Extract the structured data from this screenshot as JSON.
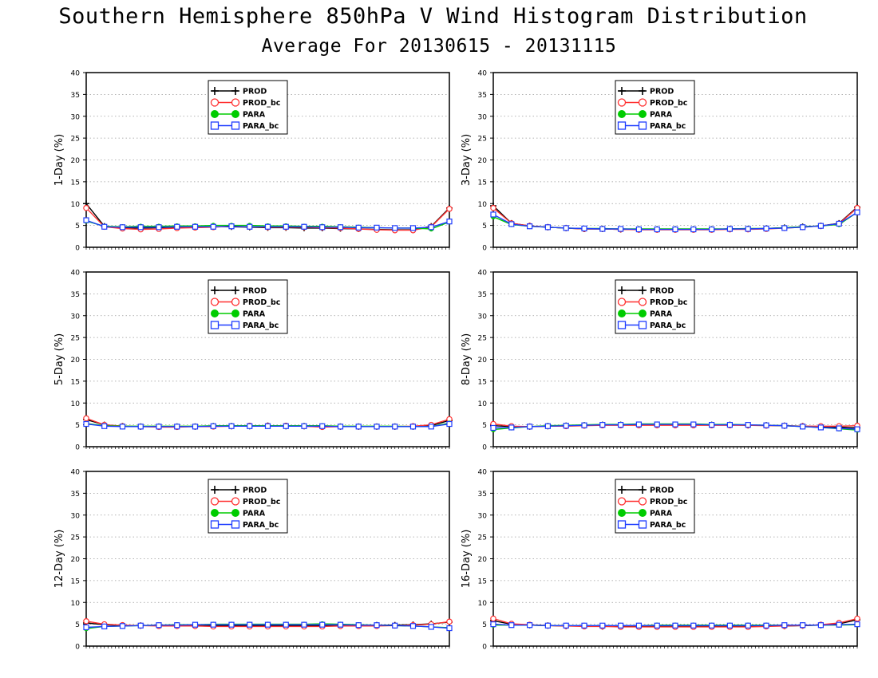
{
  "page": {
    "title": "Southern Hemisphere 850hPa V Wind Histogram Distribution",
    "subtitle": "Average For 20130615 - 20131115"
  },
  "series_styles": [
    {
      "name": "PROD",
      "color": "#000000",
      "marker": "plus"
    },
    {
      "name": "PROD_bc",
      "color": "#ff3030",
      "marker": "open-circle"
    },
    {
      "name": "PARA",
      "color": "#00cc00",
      "marker": "filled-circle"
    },
    {
      "name": "PARA_bc",
      "color": "#1e3cff",
      "marker": "open-square"
    }
  ],
  "chart_data": [
    {
      "type": "line",
      "ylabel": "1-Day (%)",
      "ylim": [
        0,
        40
      ],
      "yticks": [
        0,
        5,
        10,
        15,
        20,
        25,
        30,
        35,
        40
      ],
      "grid": true,
      "legend": "top-left",
      "x": [
        1,
        2,
        3,
        4,
        5,
        6,
        7,
        8,
        9,
        10,
        11,
        12,
        13,
        14,
        15,
        16,
        17,
        18,
        19,
        20,
        21
      ],
      "series": [
        {
          "name": "PROD",
          "values": [
            10,
            4.8,
            4.5,
            4.4,
            4.5,
            4.6,
            4.6,
            4.7,
            4.7,
            4.6,
            4.5,
            4.5,
            4.4,
            4.4,
            4.3,
            4.2,
            4.1,
            4.0,
            4.0,
            4.8,
            9.0
          ]
        },
        {
          "name": "PROD_bc",
          "values": [
            9.0,
            4.7,
            4.3,
            4.1,
            4.2,
            4.4,
            4.5,
            4.6,
            4.8,
            4.7,
            4.6,
            4.6,
            4.6,
            4.5,
            4.4,
            4.2,
            4.0,
            3.9,
            3.9,
            4.7,
            8.8
          ]
        },
        {
          "name": "PARA",
          "values": [
            6.0,
            4.8,
            4.7,
            4.8,
            4.8,
            4.9,
            4.9,
            5.0,
            5.0,
            5.0,
            4.9,
            4.9,
            4.8,
            4.8,
            4.7,
            4.6,
            4.5,
            4.4,
            4.4,
            4.2,
            5.8
          ]
        },
        {
          "name": "PARA_bc",
          "values": [
            6.2,
            4.7,
            4.6,
            4.6,
            4.6,
            4.7,
            4.7,
            4.7,
            4.8,
            4.7,
            4.7,
            4.7,
            4.7,
            4.6,
            4.6,
            4.5,
            4.5,
            4.4,
            4.4,
            4.6,
            5.9
          ]
        }
      ]
    },
    {
      "type": "line",
      "ylabel": "3-Day (%)",
      "ylim": [
        0,
        40
      ],
      "yticks": [
        0,
        5,
        10,
        15,
        20,
        25,
        30,
        35,
        40
      ],
      "grid": true,
      "legend": "top-left",
      "x": [
        1,
        2,
        3,
        4,
        5,
        6,
        7,
        8,
        9,
        10,
        11,
        12,
        13,
        14,
        15,
        16,
        17,
        18,
        19,
        20,
        21
      ],
      "series": [
        {
          "name": "PROD",
          "values": [
            9.5,
            5.5,
            4.9,
            4.6,
            4.4,
            4.2,
            4.2,
            4.1,
            4.1,
            4.1,
            4.1,
            4.1,
            4.1,
            4.2,
            4.2,
            4.3,
            4.5,
            4.7,
            4.9,
            5.5,
            9.2
          ]
        },
        {
          "name": "PROD_bc",
          "values": [
            9.0,
            5.5,
            4.9,
            4.6,
            4.4,
            4.2,
            4.2,
            4.1,
            4.0,
            4.0,
            4.0,
            4.0,
            4.0,
            4.1,
            4.1,
            4.2,
            4.4,
            4.6,
            4.9,
            5.4,
            9.0
          ]
        },
        {
          "name": "PARA",
          "values": [
            7.0,
            5.2,
            4.8,
            4.6,
            4.4,
            4.3,
            4.3,
            4.2,
            4.2,
            4.2,
            4.2,
            4.2,
            4.2,
            4.2,
            4.3,
            4.3,
            4.5,
            4.7,
            4.9,
            5.2,
            8.0
          ]
        },
        {
          "name": "PARA_bc",
          "values": [
            7.5,
            5.3,
            4.8,
            4.6,
            4.4,
            4.3,
            4.2,
            4.2,
            4.1,
            4.1,
            4.1,
            4.1,
            4.1,
            4.2,
            4.2,
            4.3,
            4.4,
            4.6,
            4.9,
            5.4,
            8.0
          ]
        }
      ]
    },
    {
      "type": "line",
      "ylabel": "5-Day (%)",
      "ylim": [
        0,
        40
      ],
      "yticks": [
        0,
        5,
        10,
        15,
        20,
        25,
        30,
        35,
        40
      ],
      "grid": true,
      "legend": "top-left",
      "x": [
        1,
        2,
        3,
        4,
        5,
        6,
        7,
        8,
        9,
        10,
        11,
        12,
        13,
        14,
        15,
        16,
        17,
        18,
        19,
        20,
        21
      ],
      "series": [
        {
          "name": "PROD",
          "values": [
            6.2,
            5.0,
            4.7,
            4.6,
            4.6,
            4.6,
            4.6,
            4.7,
            4.7,
            4.7,
            4.8,
            4.7,
            4.7,
            4.6,
            4.6,
            4.6,
            4.6,
            4.6,
            4.6,
            4.8,
            6.0
          ]
        },
        {
          "name": "PROD_bc",
          "values": [
            6.5,
            5.0,
            4.7,
            4.6,
            4.5,
            4.5,
            4.6,
            4.6,
            4.7,
            4.8,
            4.8,
            4.8,
            4.7,
            4.5,
            4.6,
            4.6,
            4.6,
            4.6,
            4.7,
            5.0,
            6.3
          ]
        },
        {
          "name": "PARA",
          "values": [
            5.3,
            4.8,
            4.7,
            4.7,
            4.7,
            4.7,
            4.7,
            4.8,
            4.8,
            4.8,
            4.8,
            4.8,
            4.8,
            4.8,
            4.7,
            4.7,
            4.7,
            4.7,
            4.6,
            4.6,
            5.4
          ]
        },
        {
          "name": "PARA_bc",
          "values": [
            5.2,
            4.7,
            4.6,
            4.6,
            4.6,
            4.6,
            4.6,
            4.7,
            4.7,
            4.7,
            4.7,
            4.7,
            4.7,
            4.7,
            4.6,
            4.6,
            4.6,
            4.6,
            4.6,
            4.6,
            5.2
          ]
        }
      ]
    },
    {
      "type": "line",
      "ylabel": "8-Day (%)",
      "ylim": [
        0,
        40
      ],
      "yticks": [
        0,
        5,
        10,
        15,
        20,
        25,
        30,
        35,
        40
      ],
      "grid": true,
      "legend": "top-left",
      "x": [
        1,
        2,
        3,
        4,
        5,
        6,
        7,
        8,
        9,
        10,
        11,
        12,
        13,
        14,
        15,
        16,
        17,
        18,
        19,
        20,
        21
      ],
      "series": [
        {
          "name": "PROD",
          "values": [
            4.8,
            4.6,
            4.6,
            4.7,
            4.8,
            4.9,
            5.0,
            5.0,
            5.0,
            5.0,
            5.0,
            5.0,
            5.0,
            5.0,
            4.9,
            4.9,
            4.8,
            4.7,
            4.6,
            4.5,
            4.3
          ]
        },
        {
          "name": "PROD_bc",
          "values": [
            5.2,
            4.7,
            4.6,
            4.7,
            4.7,
            4.8,
            4.9,
            4.9,
            4.9,
            4.9,
            4.9,
            4.9,
            4.9,
            4.9,
            4.9,
            4.8,
            4.8,
            4.7,
            4.7,
            4.7,
            4.8
          ]
        },
        {
          "name": "PARA",
          "values": [
            3.9,
            4.3,
            4.6,
            4.8,
            4.9,
            5.0,
            5.1,
            5.1,
            5.2,
            5.2,
            5.2,
            5.2,
            5.1,
            5.1,
            5.0,
            4.9,
            4.8,
            4.6,
            4.4,
            4.1,
            3.8
          ]
        },
        {
          "name": "PARA_bc",
          "values": [
            4.3,
            4.4,
            4.6,
            4.7,
            4.8,
            4.9,
            5.0,
            5.0,
            5.1,
            5.1,
            5.1,
            5.1,
            5.0,
            5.0,
            5.0,
            4.9,
            4.8,
            4.6,
            4.4,
            4.2,
            4.0
          ]
        }
      ]
    },
    {
      "type": "line",
      "ylabel": "12-Day (%)",
      "ylim": [
        0,
        40
      ],
      "yticks": [
        0,
        5,
        10,
        15,
        20,
        25,
        30,
        35,
        40
      ],
      "grid": true,
      "legend": "top-left",
      "x": [
        1,
        2,
        3,
        4,
        5,
        6,
        7,
        8,
        9,
        10,
        11,
        12,
        13,
        14,
        15,
        16,
        17,
        18,
        19,
        20,
        21
      ],
      "series": [
        {
          "name": "PROD",
          "values": [
            5.3,
            4.9,
            4.7,
            4.7,
            4.7,
            4.7,
            4.7,
            4.7,
            4.7,
            4.7,
            4.7,
            4.7,
            4.7,
            4.7,
            4.7,
            4.7,
            4.8,
            4.8,
            4.9,
            5.1,
            5.5
          ]
        },
        {
          "name": "PROD_bc",
          "values": [
            5.7,
            5.0,
            4.8,
            4.7,
            4.6,
            4.6,
            4.6,
            4.5,
            4.5,
            4.5,
            4.5,
            4.5,
            4.5,
            4.5,
            4.6,
            4.6,
            4.6,
            4.7,
            4.8,
            5.0,
            5.6
          ]
        },
        {
          "name": "PARA",
          "values": [
            4.0,
            4.5,
            4.6,
            4.7,
            4.8,
            4.9,
            4.9,
            5.0,
            5.0,
            5.0,
            5.0,
            5.0,
            5.0,
            5.1,
            5.0,
            4.9,
            4.8,
            4.7,
            4.6,
            4.4,
            4.2
          ]
        },
        {
          "name": "PARA_bc",
          "values": [
            4.3,
            4.5,
            4.6,
            4.7,
            4.8,
            4.8,
            4.9,
            4.9,
            4.9,
            4.9,
            4.9,
            4.9,
            4.9,
            4.9,
            4.9,
            4.8,
            4.8,
            4.7,
            4.6,
            4.4,
            4.1
          ]
        }
      ]
    },
    {
      "type": "line",
      "ylabel": "16-Day (%)",
      "ylim": [
        0,
        40
      ],
      "yticks": [
        0,
        5,
        10,
        15,
        20,
        25,
        30,
        35,
        40
      ],
      "grid": true,
      "legend": "top-left",
      "x": [
        1,
        2,
        3,
        4,
        5,
        6,
        7,
        8,
        9,
        10,
        11,
        12,
        13,
        14,
        15,
        16,
        17,
        18,
        19,
        20,
        21
      ],
      "series": [
        {
          "name": "PROD",
          "values": [
            5.8,
            5.0,
            4.8,
            4.7,
            4.6,
            4.6,
            4.5,
            4.6,
            4.6,
            4.6,
            4.6,
            4.6,
            4.5,
            4.5,
            4.5,
            4.6,
            4.6,
            4.7,
            4.8,
            5.1,
            6.0
          ]
        },
        {
          "name": "PROD_bc",
          "values": [
            6.3,
            5.1,
            4.9,
            4.7,
            4.6,
            4.5,
            4.5,
            4.4,
            4.4,
            4.4,
            4.4,
            4.4,
            4.4,
            4.4,
            4.4,
            4.5,
            4.6,
            4.7,
            4.9,
            5.3,
            6.3
          ]
        },
        {
          "name": "PARA",
          "values": [
            4.8,
            4.8,
            4.8,
            4.7,
            4.7,
            4.7,
            4.7,
            4.7,
            4.7,
            4.8,
            4.8,
            4.8,
            4.8,
            4.8,
            4.8,
            4.8,
            4.8,
            4.8,
            4.8,
            4.8,
            4.9
          ]
        },
        {
          "name": "PARA_bc",
          "values": [
            5.0,
            4.8,
            4.8,
            4.7,
            4.7,
            4.7,
            4.7,
            4.7,
            4.7,
            4.7,
            4.7,
            4.7,
            4.7,
            4.7,
            4.7,
            4.7,
            4.8,
            4.8,
            4.8,
            4.9,
            5.0
          ]
        }
      ]
    }
  ]
}
